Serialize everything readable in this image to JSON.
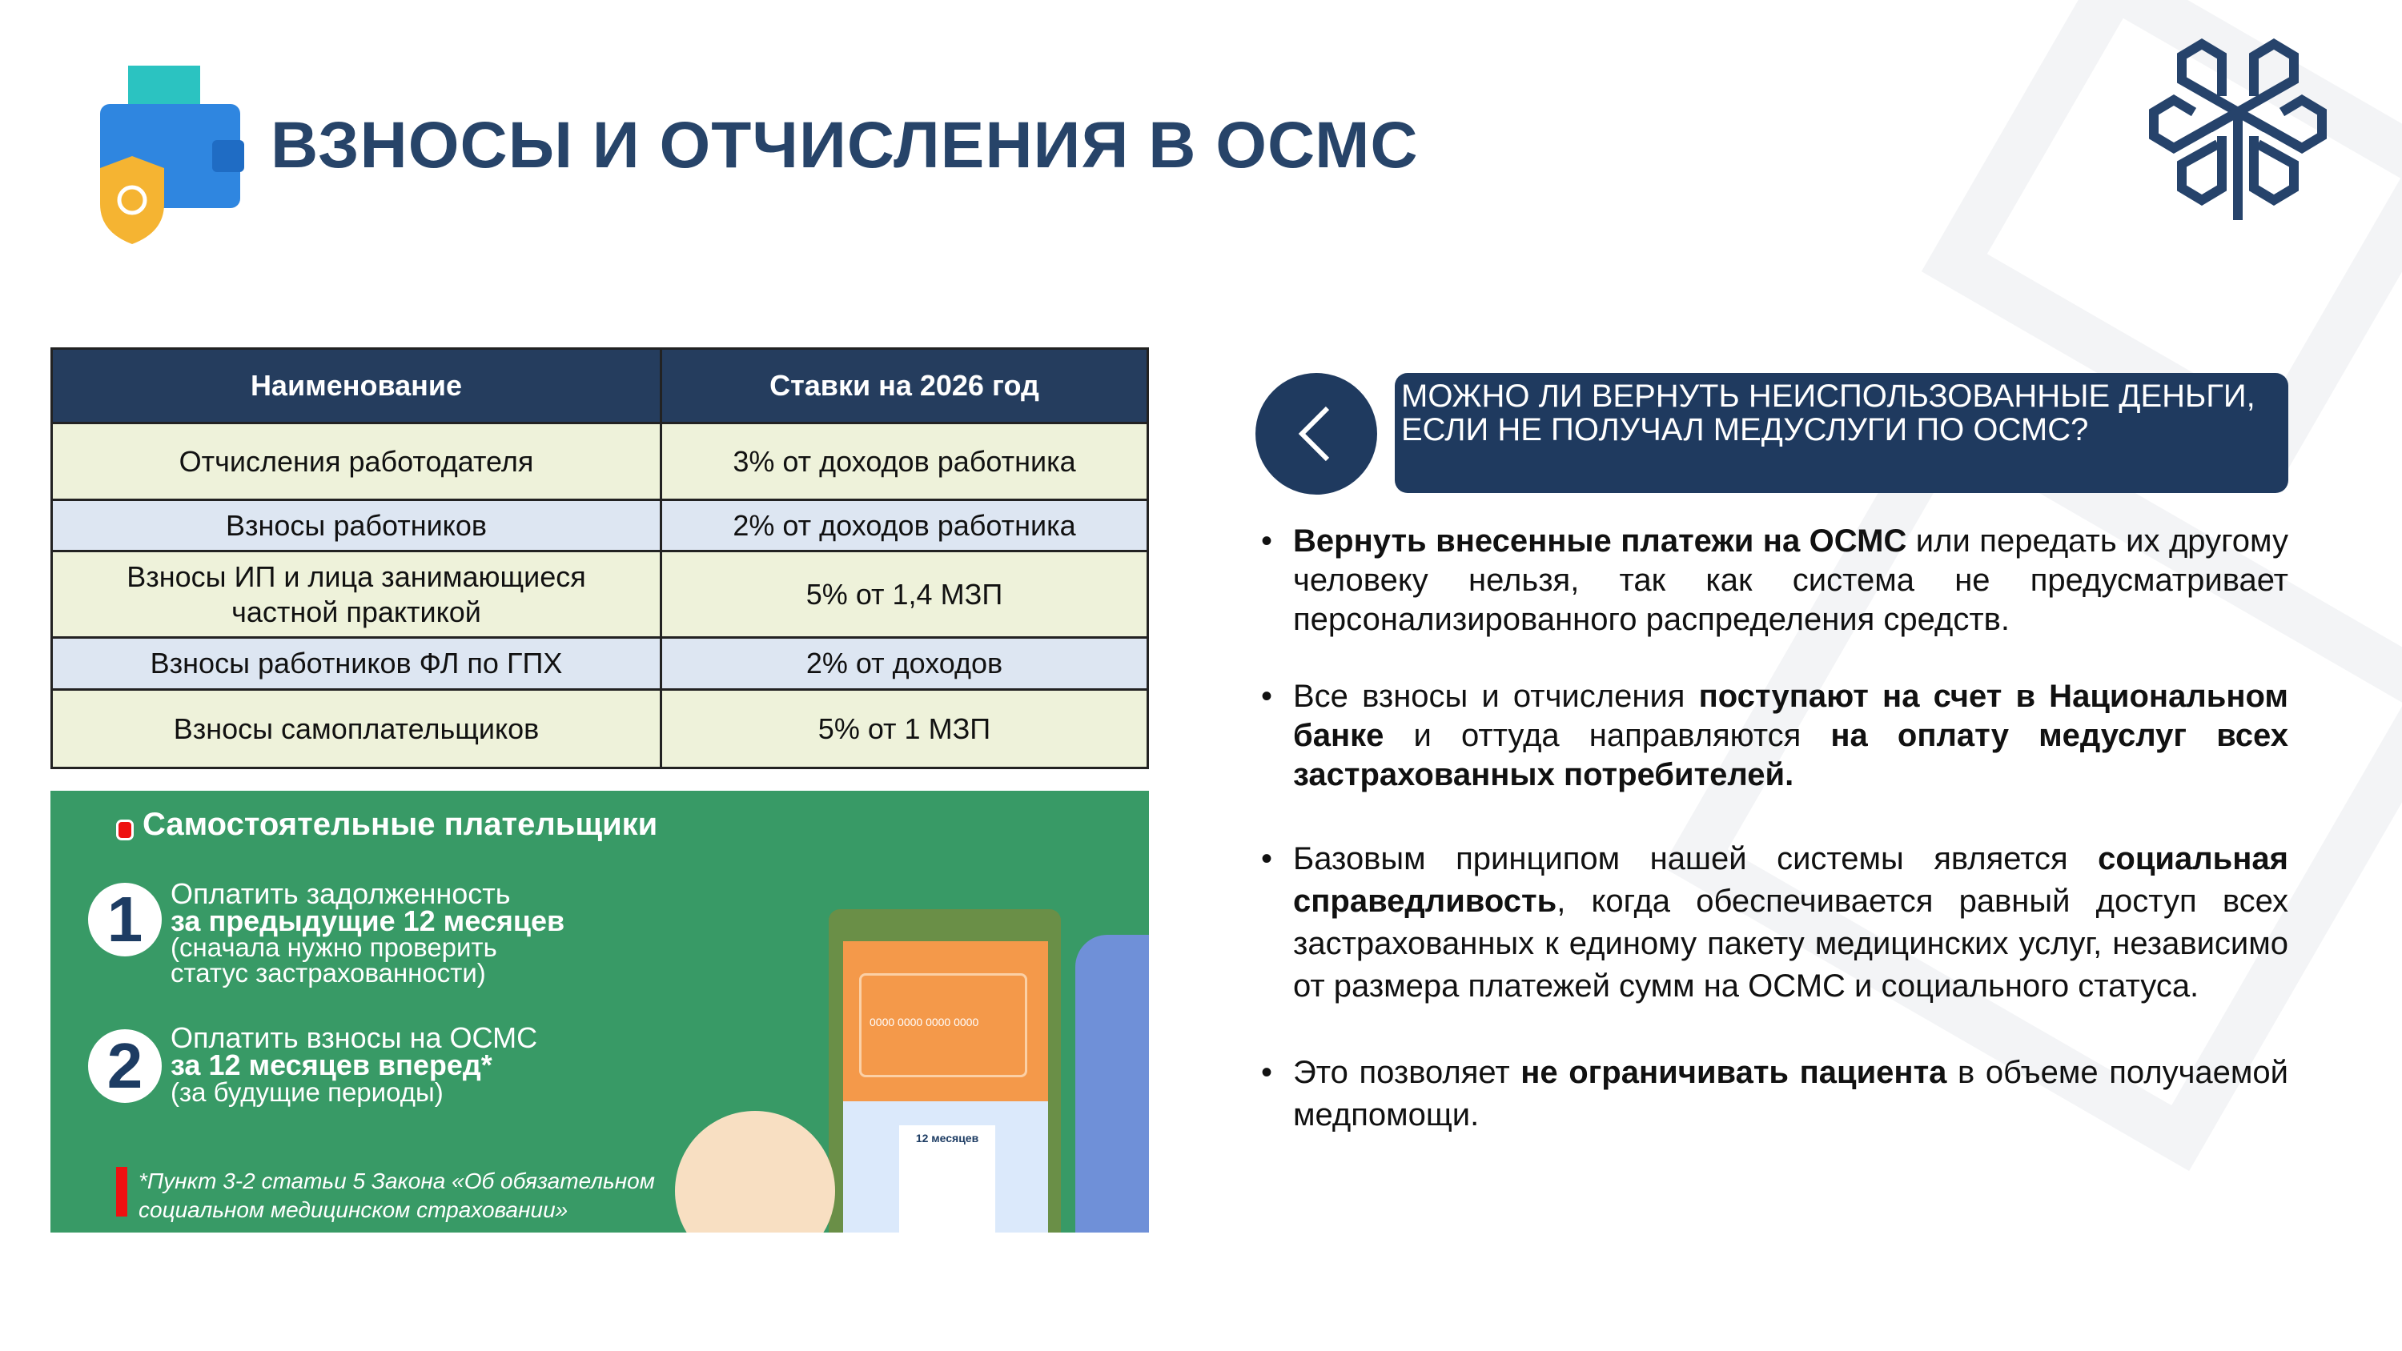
{
  "title": "ВЗНОСЫ И ОТЧИСЛЕНИЯ В ОСМС",
  "table": {
    "headers": [
      "Наименование",
      "Ставки на 2026 год"
    ],
    "rows": [
      [
        "Отчисления работодателя",
        "3% от доходов работника"
      ],
      [
        "Взносы работников",
        "2% от доходов работника"
      ],
      [
        "Взносы ИП и лица занимающиеся частной практикой",
        "5% от 1,4 МЗП"
      ],
      [
        "Взносы работников ФЛ по ГПХ",
        "2% от доходов"
      ],
      [
        "Взносы самоплательщиков",
        "5% от 1 МЗП"
      ]
    ]
  },
  "infographic": {
    "heading": "Самостоятельные плательщики",
    "steps": [
      {
        "num": "1",
        "line1": "Оплатить задолженность",
        "bold": "за предыдущие 12 месяцев",
        "note": "(сначала нужно проверить статус застрахованности)"
      },
      {
        "num": "2",
        "line1": "Оплатить взносы на ОСМС",
        "bold": "за 12 месяцев вперед*",
        "note": "(за будущие периоды)"
      }
    ],
    "footnote": "*Пункт 3-2 статьи 5 Закона «Об обязательном социальном медицинском страховании»",
    "card_number": "0000 0000 0000 0000",
    "doc_label": "12 месяцев"
  },
  "question": "Можно ли вернуть неиспользованные деньги, если не получал медуслуги по ОСМС?",
  "bullets": [
    [
      {
        "b": true,
        "t": "Вернуть внесенные платежи на ОСМС"
      },
      {
        "b": false,
        "t": " или передать их другому человеку нельзя, так как система не предусматривает персонализированного распределения средств."
      }
    ],
    [
      {
        "b": false,
        "t": "Все взносы и отчисления "
      },
      {
        "b": true,
        "t": "поступают на счет в Национальном банке"
      },
      {
        "b": false,
        "t": " и оттуда направляются "
      },
      {
        "b": true,
        "t": "на оплату медуслуг всех застрахованных потребителей."
      }
    ],
    [
      {
        "b": false,
        "t": "Базовым принципом нашей системы является "
      },
      {
        "b": true,
        "t": "социальная справедливость"
      },
      {
        "b": false,
        "t": ", когда обеспечивается равный доступ всех застрахованных к единому пакету медицинских услуг, независимо от размера платежей сумм на ОСМС и социального статуса."
      }
    ],
    [
      {
        "b": false,
        "t": "Это позволяет "
      },
      {
        "b": true,
        "t": "не ограничивать пациента"
      },
      {
        "b": false,
        "t": " в объеме получаемой медпомощи."
      }
    ]
  ],
  "colors": {
    "navy": "#1f3a5f",
    "green": "#389a66",
    "title": "#274469"
  }
}
